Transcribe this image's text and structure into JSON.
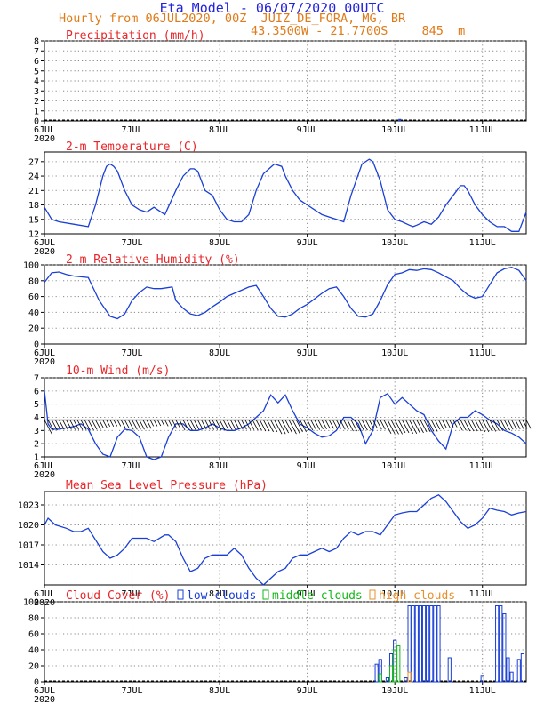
{
  "header": {
    "title": "Eta Model - 06/07/2020 00UTC",
    "subtitle": "Hourly from 06JUL2020, 00Z  JUIZ_DE_FORA, MG, BR",
    "coords": "43.3500W - 21.7700S",
    "elevation": "845  m"
  },
  "colors": {
    "line": "#1a3fd6",
    "title_red": "#e8262a",
    "header_blue": "#2222dd",
    "header_orange": "#e07b1a",
    "mid_clouds": "#16b81a",
    "high_clouds": "#e8902a"
  },
  "x_axis": {
    "range_hours": [
      0,
      132
    ],
    "ticks": [
      {
        "h": 0,
        "label": "6JUL",
        "sub": "2020"
      },
      {
        "h": 24,
        "label": "7JUL",
        "sub": ""
      },
      {
        "h": 48,
        "label": "8JUL",
        "sub": ""
      },
      {
        "h": 72,
        "label": "9JUL",
        "sub": ""
      },
      {
        "h": 96,
        "label": "10JUL",
        "sub": ""
      },
      {
        "h": 120,
        "label": "11JUL",
        "sub": ""
      }
    ]
  },
  "chart_data": [
    {
      "id": "precip",
      "type": "bar",
      "title": "Precipitation (mm/h)",
      "ylim": [
        0,
        8
      ],
      "yticks": [
        0,
        1,
        2,
        3,
        4,
        5,
        6,
        7,
        8
      ],
      "grid": true,
      "x": [
        96
      ],
      "values": [
        0.2
      ]
    },
    {
      "id": "temp",
      "type": "line",
      "title": "2-m Temperature (C)",
      "ylim": [
        12,
        29
      ],
      "yticks": [
        12,
        15,
        18,
        21,
        24,
        27
      ],
      "grid": true,
      "x": [
        0,
        2,
        4,
        8,
        12,
        14,
        15,
        16,
        17,
        18,
        19,
        20,
        22,
        24,
        26,
        28,
        30,
        31,
        33,
        36,
        38,
        40,
        41,
        42,
        43,
        44,
        46,
        48,
        50,
        52,
        54,
        56,
        58,
        60,
        63,
        65,
        66,
        67,
        68,
        70,
        72,
        74,
        76,
        78,
        80,
        82,
        84,
        87,
        89,
        90,
        91,
        92,
        94,
        96,
        98,
        100,
        101,
        102,
        104,
        106,
        108,
        110,
        112,
        114,
        115,
        116,
        118,
        120,
        122,
        124,
        126,
        128,
        130,
        132
      ],
      "values": [
        17.5,
        15,
        14.5,
        14,
        13.5,
        18,
        21,
        24,
        26,
        26.5,
        26,
        25,
        21,
        18,
        17,
        16.5,
        17.5,
        17,
        16,
        21,
        24,
        25.5,
        25.5,
        25,
        23,
        21,
        20,
        17,
        15,
        14.5,
        14.5,
        16,
        21,
        24.5,
        26.5,
        26,
        24,
        22.5,
        21,
        19,
        18,
        17,
        16,
        15.5,
        15,
        14.5,
        20,
        26.5,
        27.5,
        27,
        25,
        23,
        17,
        15,
        14.5,
        13.8,
        13.5,
        13.8,
        14.5,
        14,
        15.5,
        18,
        20,
        22,
        22,
        21,
        18,
        16,
        14.5,
        13.5,
        13.5,
        12.5,
        12.5,
        16.5
      ]
    },
    {
      "id": "rh",
      "type": "line",
      "title": "2-m Relative Humidity (%)",
      "ylim": [
        0,
        100
      ],
      "yticks": [
        0,
        20,
        40,
        60,
        80,
        100
      ],
      "grid": true,
      "x": [
        0,
        2,
        4,
        6,
        8,
        12,
        15,
        18,
        20,
        22,
        24,
        26,
        28,
        30,
        32,
        35,
        36,
        38,
        40,
        42,
        44,
        46,
        48,
        50,
        52,
        54,
        56,
        58,
        60,
        62,
        64,
        66,
        68,
        70,
        72,
        74,
        76,
        78,
        80,
        82,
        84,
        86,
        88,
        90,
        92,
        94,
        96,
        98,
        100,
        102,
        104,
        106,
        108,
        110,
        112,
        114,
        116,
        118,
        120,
        122,
        124,
        126,
        128,
        130,
        132
      ],
      "values": [
        78,
        90,
        91,
        88,
        86,
        84,
        55,
        35,
        32,
        38,
        55,
        65,
        72,
        70,
        70,
        72,
        55,
        45,
        38,
        36,
        40,
        47,
        53,
        60,
        64,
        68,
        72,
        74,
        60,
        45,
        35,
        34,
        38,
        45,
        50,
        57,
        64,
        70,
        72,
        60,
        45,
        35,
        34,
        38,
        55,
        75,
        88,
        90,
        94,
        93,
        95,
        94,
        90,
        85,
        80,
        70,
        62,
        58,
        60,
        75,
        90,
        95,
        97,
        93,
        80
      ]
    },
    {
      "id": "wind",
      "type": "line",
      "title": "10-m Wind (m/s)",
      "ylim": [
        1,
        7
      ],
      "yticks": [
        1,
        2,
        3,
        4,
        5,
        6,
        7
      ],
      "grid": true,
      "x": [
        0,
        1,
        2,
        4,
        6,
        8,
        10,
        12,
        14,
        16,
        18,
        20,
        22,
        24,
        26,
        28,
        30,
        32,
        34,
        36,
        38,
        40,
        42,
        44,
        46,
        48,
        50,
        52,
        54,
        56,
        58,
        60,
        62,
        64,
        66,
        68,
        70,
        72,
        74,
        76,
        78,
        80,
        82,
        84,
        86,
        88,
        90,
        92,
        94,
        96,
        98,
        100,
        102,
        104,
        106,
        108,
        110,
        112,
        114,
        116,
        118,
        120,
        122,
        124,
        126,
        128,
        130,
        132
      ],
      "values": [
        6,
        3.5,
        3.1,
        3.1,
        3.2,
        3.3,
        3.5,
        3.1,
        2.0,
        1.2,
        1.0,
        2.5,
        3.1,
        3.0,
        2.5,
        1.0,
        0.8,
        1.0,
        2.5,
        3.5,
        3.5,
        3.0,
        3.0,
        3.2,
        3.5,
        3.2,
        3.0,
        3.0,
        3.2,
        3.5,
        4.0,
        4.5,
        5.7,
        5.1,
        5.7,
        4.5,
        3.5,
        3.2,
        2.8,
        2.5,
        2.6,
        3.0,
        4.0,
        4.0,
        3.5,
        2.0,
        3.0,
        5.5,
        5.8,
        5.0,
        5.5,
        5.0,
        4.5,
        4.2,
        3.0,
        2.2,
        1.6,
        3.5,
        4.0,
        4.0,
        4.5,
        4.2,
        3.8,
        3.5,
        3.0,
        2.8,
        2.5,
        2.0
      ]
    },
    {
      "id": "mslp",
      "type": "line",
      "title": "Mean Sea Level Pressure (hPa)",
      "ylim": [
        1011,
        1025
      ],
      "yticks": [
        1014,
        1017,
        1020,
        1023
      ],
      "grid": true,
      "x": [
        0,
        1,
        3,
        6,
        8,
        10,
        12,
        16,
        18,
        20,
        22,
        24,
        26,
        28,
        30,
        33,
        34,
        36,
        38,
        40,
        42,
        44,
        46,
        48,
        50,
        52,
        54,
        56,
        58,
        60,
        62,
        64,
        66,
        68,
        70,
        72,
        74,
        76,
        78,
        80,
        82,
        84,
        86,
        88,
        90,
        92,
        94,
        96,
        98,
        100,
        102,
        104,
        106,
        108,
        110,
        112,
        114,
        116,
        118,
        120,
        122,
        124,
        126,
        128,
        130,
        132
      ],
      "values": [
        1020,
        1021,
        1020,
        1019.5,
        1019,
        1019,
        1019.5,
        1016,
        1015,
        1015.5,
        1016.5,
        1018,
        1018,
        1018,
        1017.5,
        1018.5,
        1018.5,
        1017.5,
        1015,
        1013,
        1013.5,
        1015,
        1015.5,
        1015.5,
        1015.5,
        1016.5,
        1015.5,
        1013.5,
        1012,
        1011,
        1012,
        1013,
        1013.5,
        1015,
        1015.5,
        1015.5,
        1016,
        1016.5,
        1016,
        1016.5,
        1018,
        1019,
        1018.5,
        1019,
        1019,
        1018.5,
        1020,
        1021.5,
        1021.8,
        1022,
        1022,
        1023,
        1024,
        1024.5,
        1023.5,
        1022,
        1020.5,
        1019.5,
        1020,
        1021,
        1022.5,
        1022.2,
        1022,
        1021.5,
        1021.8,
        1022
      ]
    },
    {
      "id": "cloud",
      "type": "bar",
      "title": "Cloud Cover (%)",
      "ylim": [
        0,
        100
      ],
      "yticks": [
        0,
        20,
        40,
        60,
        80,
        100
      ],
      "grid": true,
      "legend": [
        "low clouds",
        "middle clouds",
        "high clouds"
      ],
      "series": [
        {
          "name": "low clouds",
          "x": [
            91,
            92,
            94,
            95,
            96,
            99,
            100,
            101,
            102,
            103,
            104,
            105,
            106,
            107,
            108,
            111,
            120,
            124,
            125,
            126,
            127,
            128,
            130,
            131
          ],
          "values": [
            22,
            28,
            5,
            35,
            52,
            5,
            95,
            95,
            95,
            95,
            95,
            95,
            95,
            95,
            95,
            30,
            8,
            95,
            95,
            85,
            30,
            12,
            28,
            35
          ]
        },
        {
          "name": "middle clouds",
          "x": [
            92,
            95,
            96,
            97
          ],
          "values": [
            10,
            20,
            40,
            45
          ]
        },
        {
          "name": "high clouds",
          "x": [
            100
          ],
          "values": [
            12
          ]
        }
      ]
    }
  ]
}
